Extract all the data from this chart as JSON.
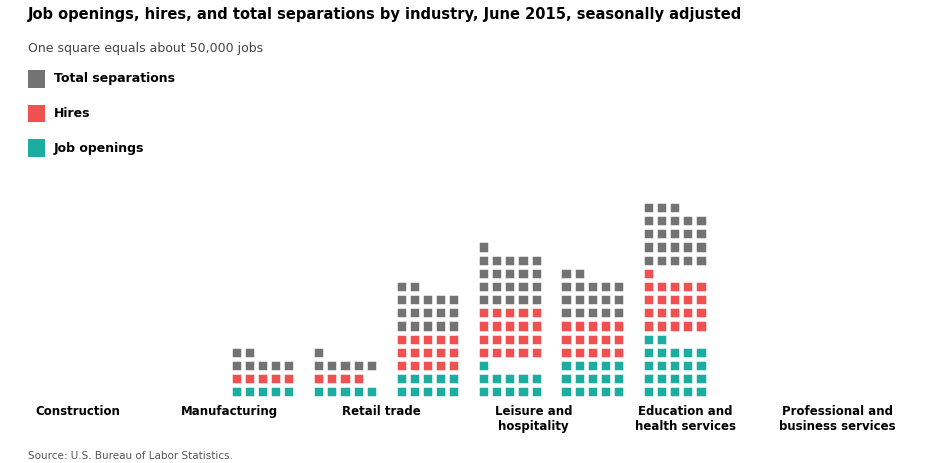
{
  "title": "Job openings, hires, and total separations by industry, June 2015, seasonally adjusted",
  "subtitle": "One square equals about 50,000 jobs",
  "source": "Source: U.S. Bureau of Labor Statistics.",
  "colors": {
    "separations": "#737373",
    "hires": "#f05050",
    "openings": "#1aada0"
  },
  "legend": [
    {
      "label": "Total separations",
      "color": "#737373"
    },
    {
      "label": "Hires",
      "color": "#f05050"
    },
    {
      "label": "Job openings",
      "color": "#1aada0"
    }
  ],
  "industries": [
    {
      "name": "Construction",
      "separations": 7,
      "hires": 5,
      "openings": 5
    },
    {
      "name": "Manufacturing",
      "separations": 6,
      "hires": 4,
      "openings": 5
    },
    {
      "name": "Retail trade",
      "separations": 17,
      "hires": 15,
      "openings": 10
    },
    {
      "name": "Leisure and\nhospitality",
      "separations": 21,
      "hires": 20,
      "openings": 11
    },
    {
      "name": "Education and\nhealth services",
      "separations": 17,
      "hires": 15,
      "openings": 15
    },
    {
      "name": "Professional and\nbusiness services",
      "separations": 23,
      "hires": 21,
      "openings": 22
    }
  ]
}
